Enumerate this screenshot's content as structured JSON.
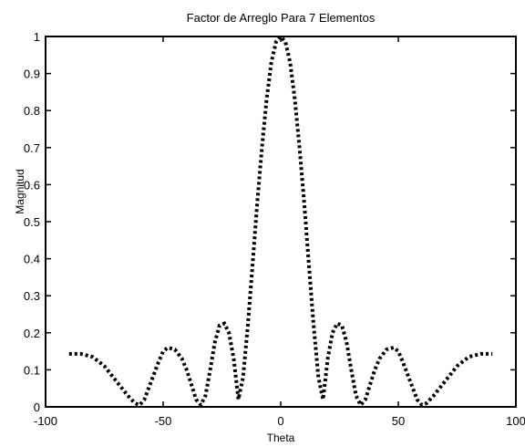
{
  "chart_data": {
    "type": "line",
    "title": "Factor de Arreglo Para 7 Elementos",
    "xlabel": "Theta",
    "ylabel": "Magnitud",
    "xlim": [
      -100,
      100
    ],
    "ylim": [
      0,
      1
    ],
    "x_ticks": [
      -100,
      -50,
      0,
      50,
      100
    ],
    "x_tick_labels": [
      "-100",
      "-50",
      "0",
      "50",
      "100"
    ],
    "y_ticks": [
      0,
      0.1,
      0.2,
      0.3,
      0.4,
      0.5,
      0.6,
      0.7,
      0.8,
      0.9,
      1
    ],
    "y_tick_labels": [
      "0",
      "0.1",
      "0.2",
      "0.3",
      "0.4",
      "0.5",
      "0.6",
      "0.7",
      "0.8",
      "0.9",
      "1"
    ],
    "grid": false,
    "series": [
      {
        "style": "dotted",
        "color": "#000000",
        "x": [
          -90,
          -85,
          -80,
          -75,
          -70,
          -65,
          -62,
          -60,
          -58,
          -55,
          -52,
          -50,
          -48,
          -45,
          -42,
          -40,
          -38,
          -36,
          -34,
          -32,
          -30,
          -28,
          -26,
          -24,
          -22,
          -20,
          -18,
          -16,
          -14,
          -12,
          -10,
          -8,
          -6,
          -4,
          -2,
          0,
          2,
          4,
          6,
          8,
          10,
          12,
          14,
          16,
          18,
          20,
          22,
          24,
          26,
          28,
          30,
          32,
          34,
          36,
          38,
          40,
          42,
          45,
          48,
          50,
          52,
          55,
          58,
          60,
          62,
          65,
          70,
          75,
          80,
          85,
          90
        ],
        "y": [
          0.143,
          0.143,
          0.135,
          0.11,
          0.07,
          0.03,
          0.01,
          0.005,
          0.02,
          0.07,
          0.12,
          0.15,
          0.16,
          0.155,
          0.13,
          0.1,
          0.06,
          0.02,
          0.005,
          0.03,
          0.1,
          0.175,
          0.22,
          0.225,
          0.2,
          0.13,
          0.02,
          0.08,
          0.22,
          0.38,
          0.55,
          0.7,
          0.83,
          0.93,
          0.985,
          1.0,
          0.985,
          0.93,
          0.83,
          0.7,
          0.55,
          0.38,
          0.22,
          0.08,
          0.02,
          0.13,
          0.2,
          0.225,
          0.22,
          0.175,
          0.1,
          0.03,
          0.005,
          0.02,
          0.06,
          0.1,
          0.13,
          0.155,
          0.16,
          0.15,
          0.12,
          0.07,
          0.02,
          0.005,
          0.01,
          0.03,
          0.07,
          0.11,
          0.135,
          0.143,
          0.143
        ]
      }
    ]
  }
}
